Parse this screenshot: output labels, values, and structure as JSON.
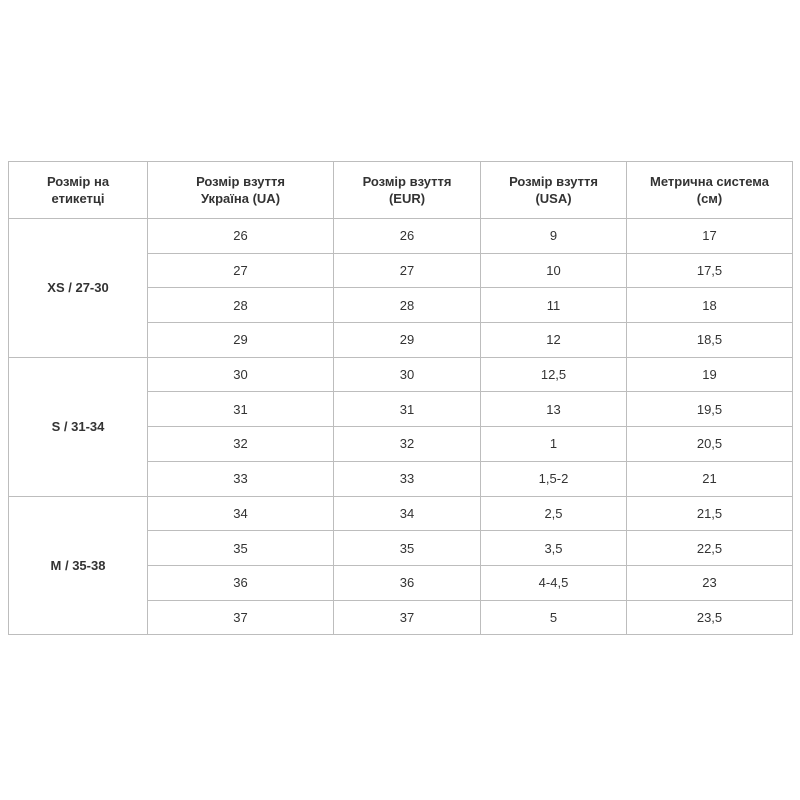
{
  "headers": [
    "Розмір на\nетикетці",
    "Розмір взуття\nУкраїна (UA)",
    "Розмір взуття\n(EUR)",
    "Розмір взуття\n(USA)",
    "Метрична система\n(см)"
  ],
  "groups": [
    {
      "label": "XS / 27-30",
      "rows": [
        [
          "26",
          "26",
          "9",
          "17"
        ],
        [
          "27",
          "27",
          "10",
          "17,5"
        ],
        [
          "28",
          "28",
          "11",
          "18"
        ],
        [
          "29",
          "29",
          "12",
          "18,5"
        ]
      ]
    },
    {
      "label": "S / 31-34",
      "rows": [
        [
          "30",
          "30",
          "12,5",
          "19"
        ],
        [
          "31",
          "31",
          "13",
          "19,5"
        ],
        [
          "32",
          "32",
          "1",
          "20,5"
        ],
        [
          "33",
          "33",
          "1,5-2",
          "21"
        ]
      ]
    },
    {
      "label": "M / 35-38",
      "rows": [
        [
          "34",
          "34",
          "2,5",
          "21,5"
        ],
        [
          "35",
          "35",
          "3,5",
          "22,5"
        ],
        [
          "36",
          "36",
          "4-4,5",
          "23"
        ],
        [
          "37",
          "37",
          "5",
          "23,5"
        ]
      ]
    }
  ]
}
